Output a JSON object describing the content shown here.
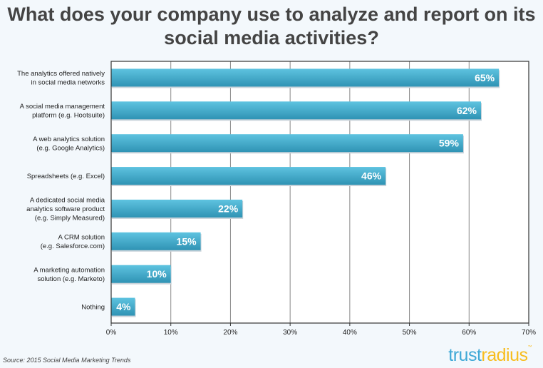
{
  "chart_data": {
    "type": "bar",
    "orientation": "horizontal",
    "title": "What does your company use to analyze and report on its social media activities?",
    "categories": [
      [
        "The analytics offered natively",
        "in social media networks"
      ],
      [
        "A social media management",
        "platform (e.g. Hootsuite)"
      ],
      [
        "A web analytics solution",
        "(e.g. Google Analytics)"
      ],
      [
        "Spreadsheets (e.g. Excel)"
      ],
      [
        "A dedicated social media",
        "analytics software product",
        "(e.g. Simply Measured)"
      ],
      [
        "A CRM solution",
        "(e.g. Salesforce.com)"
      ],
      [
        "A marketing automation",
        "solution (e.g. Marketo)"
      ],
      [
        "Nothing"
      ]
    ],
    "values": [
      65,
      62,
      59,
      46,
      22,
      15,
      10,
      4
    ],
    "data_labels": [
      "65%",
      "62%",
      "59%",
      "46%",
      "22%",
      "15%",
      "10%",
      "4%"
    ],
    "xlim": [
      0,
      70
    ],
    "xticks": [
      "0%",
      "10%",
      "20%",
      "30%",
      "40%",
      "50%",
      "60%",
      "70%"
    ],
    "grid": "vertical",
    "bar_color": "#3fa6c6"
  },
  "source": "Source: 2015 Social Media Marketing Trends",
  "logo": {
    "part1": "trust",
    "part2": "radius",
    "tm": "™"
  }
}
